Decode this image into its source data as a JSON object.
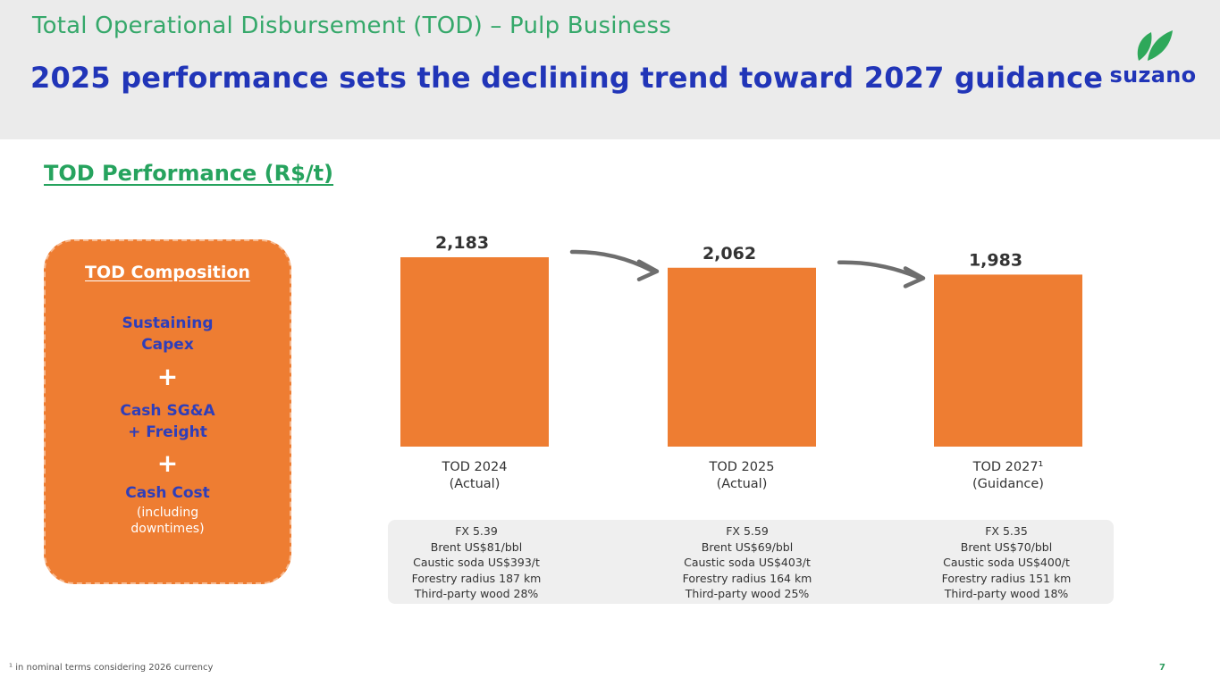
{
  "header": {
    "supertitle": "Total Operational Disbursement (TOD) – Pulp Business",
    "title": "2025 performance sets the declining trend toward 2027 guidance"
  },
  "logo": {
    "text": "suzano",
    "leaf_color": "#2ea85a",
    "text_color": "#2135b8"
  },
  "section_title": "TOD Performance (R$/t)",
  "composition": {
    "title": "TOD Composition",
    "item1_line1": "Sustaining",
    "item1_line2": "Capex",
    "plus": "+",
    "item2_line1": "Cash SG&A",
    "item2_line2": "+ Freight",
    "item3_line1": "Cash Cost",
    "item3_sub1": "(including",
    "item3_sub2": "downtimes)"
  },
  "chart_data": {
    "type": "bar",
    "title": "TOD Performance (R$/t)",
    "categories": [
      "TOD 2024 (Actual)",
      "TOD 2025 (Actual)",
      "TOD 2027¹ (Guidance)"
    ],
    "category_lines": [
      [
        "TOD 2024",
        "(Actual)"
      ],
      [
        "TOD 2025",
        "(Actual)"
      ],
      [
        "TOD 2027¹",
        "(Guidance)"
      ]
    ],
    "values": [
      2183,
      2062,
      1983
    ],
    "value_labels": [
      "2,183",
      "2,062",
      "1,983"
    ],
    "bar_color": "#ee7d32",
    "arrow_color": "#6e6e6e",
    "ylim": [
      0,
      2183
    ],
    "xlabel": "",
    "ylabel": ""
  },
  "assumptions": [
    [
      "FX 5.39",
      "Brent US$81/bbl",
      "Caustic soda US$393/t",
      "Forestry radius 187 km",
      "Third-party wood 28%"
    ],
    [
      "FX 5.59",
      "Brent US$69/bbl",
      "Caustic soda US$403/t",
      "Forestry radius 164 km",
      "Third-party wood 25%"
    ],
    [
      "FX 5.35",
      "Brent US$70/bbl",
      "Caustic soda US$400/t",
      "Forestry radius 151 km",
      "Third-party wood 18%"
    ]
  ],
  "footnote": "¹ in nominal terms considering 2026 currency",
  "page_number": "7"
}
